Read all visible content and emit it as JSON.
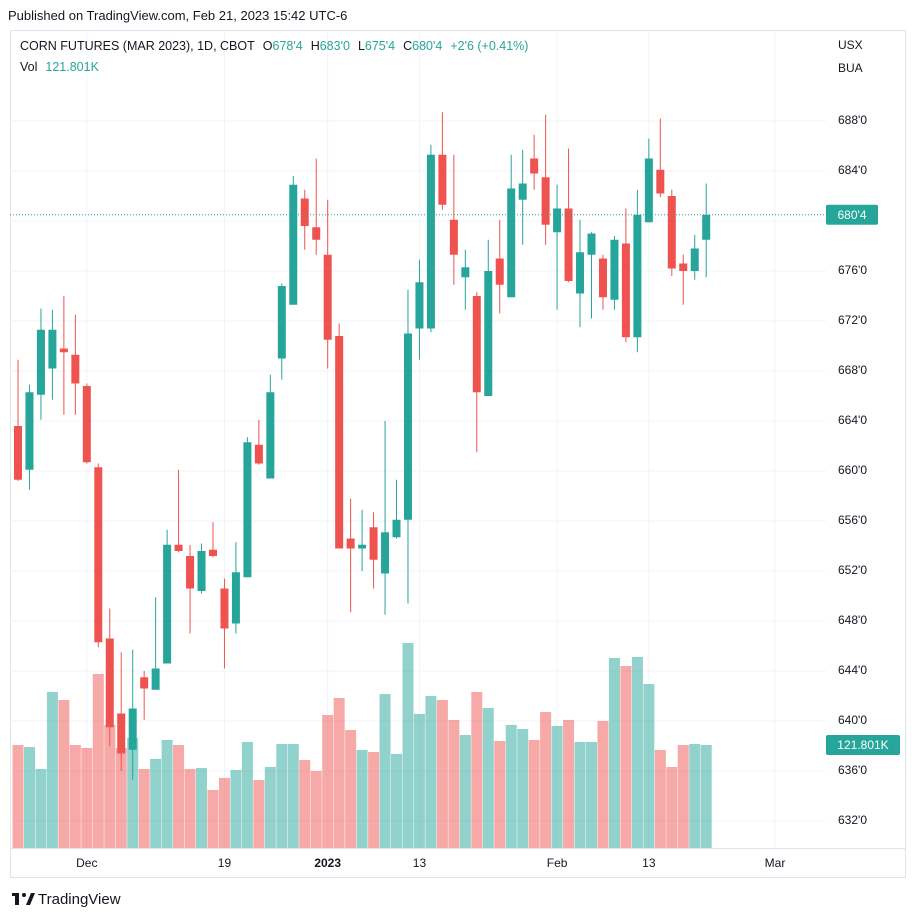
{
  "header": {
    "published": "Published on TradingView.com, Feb 21, 2023 15:42 UTC-6",
    "footer": "TradingView"
  },
  "chart_data": {
    "type": "candlestick",
    "title": "CORN FUTURES (MAR 2023), 1D, CBOT",
    "legend": [
      [
        "O",
        "678'4"
      ],
      [
        "H",
        "683'0"
      ],
      [
        "L",
        "675'4"
      ],
      [
        "C",
        "680'4"
      ]
    ],
    "change": "+2'6 (+0.41%)",
    "volume_title": "Vol",
    "volume_label": "121.801K",
    "currency": "USX",
    "unit": "BUA",
    "last_price_label": "680'4",
    "colors": {
      "up": "#26a69a",
      "down": "#ef5350"
    },
    "grid": true,
    "ylim": [
      629.84,
      695.28
    ],
    "yticks": [
      {
        "value": 632,
        "label": "632'0"
      },
      {
        "value": 636,
        "label": "636'0"
      },
      {
        "value": 640,
        "label": "640'0"
      },
      {
        "value": 644,
        "label": "644'0"
      },
      {
        "value": 648,
        "label": "648'0"
      },
      {
        "value": 652,
        "label": "652'0"
      },
      {
        "value": 656,
        "label": "656'0"
      },
      {
        "value": 660,
        "label": "660'0"
      },
      {
        "value": 664,
        "label": "664'0"
      },
      {
        "value": 668,
        "label": "668'0"
      },
      {
        "value": 672,
        "label": "672'0"
      },
      {
        "value": 676,
        "label": "676'0"
      },
      {
        "value": 680,
        "label": "680'0"
      },
      {
        "value": 684,
        "label": "684'0"
      },
      {
        "value": 688,
        "label": "688'0"
      }
    ],
    "categories": [
      null,
      null,
      null,
      null,
      null,
      null,
      "Dec",
      null,
      null,
      null,
      null,
      null,
      null,
      null,
      null,
      null,
      null,
      null,
      "19",
      null,
      null,
      null,
      null,
      null,
      null,
      null,
      null,
      "2023",
      null,
      null,
      null,
      null,
      null,
      null,
      null,
      "13",
      null,
      null,
      null,
      null,
      null,
      null,
      null,
      null,
      null,
      null,
      null,
      "Feb",
      null,
      null,
      null,
      null,
      null,
      null,
      null,
      "13",
      null,
      null,
      null,
      null,
      null,
      null,
      null,
      null,
      null,
      null,
      "Mar"
    ],
    "open": [
      663.6,
      660.1,
      666.1,
      668.2,
      669.8,
      669.3,
      666.8,
      660.3,
      646.6,
      640.6,
      637.7,
      643.5,
      642.5,
      644.6,
      654.1,
      653.2,
      650.4,
      653.7,
      650.6,
      647.8,
      651.5,
      662.1,
      659.4,
      669,
      673.3,
      681.8,
      679.5,
      677.3,
      670.8,
      654.6,
      653.8,
      655.5,
      651.8,
      654.7,
      656.1,
      671.4,
      671.4,
      685.3,
      680.1,
      675.5,
      674,
      666,
      677,
      673.9,
      681.7,
      685,
      683.5,
      679.1,
      681,
      674.2,
      677.3,
      677,
      673.7,
      678.2,
      670.7,
      679.9,
      684.1,
      682,
      676.6,
      676,
      678.5,
      null,
      null,
      null,
      null,
      null,
      null
    ],
    "high": [
      668.9,
      666.9,
      673,
      672.9,
      674,
      672.5,
      667,
      660.6,
      649,
      645.5,
      645.7,
      644,
      649.9,
      655.3,
      660.1,
      654.1,
      654.2,
      655.9,
      651.4,
      654.3,
      662.7,
      664.1,
      667.7,
      675,
      683.6,
      682.5,
      685,
      681.7,
      671.8,
      657.8,
      656.9,
      656.7,
      664,
      659.3,
      674.5,
      676.9,
      686.1,
      688.7,
      685.3,
      677.7,
      674.3,
      678.5,
      680.1,
      685.3,
      685.7,
      686.9,
      688.5,
      682.9,
      685.8,
      680.1,
      679.1,
      677.3,
      678.8,
      681,
      682.5,
      686.6,
      688.2,
      682.5,
      677.3,
      678.9,
      683,
      null,
      null,
      null,
      null,
      null,
      null
    ],
    "low": [
      659.2,
      658.5,
      664.1,
      665.7,
      664.5,
      664.5,
      660.6,
      645.9,
      638,
      636,
      635.3,
      640.1,
      642.5,
      644.6,
      653.5,
      647,
      650.2,
      653.1,
      644.2,
      647,
      651.5,
      660.5,
      659.4,
      667.3,
      673.3,
      677.7,
      677.3,
      668.2,
      653.8,
      648.7,
      652,
      650.6,
      648.5,
      654.6,
      649.4,
      668.9,
      671.1,
      680.9,
      674.9,
      672.9,
      661.5,
      666,
      672.6,
      673.9,
      678.1,
      682.5,
      678.1,
      672.9,
      675.1,
      671.5,
      672.2,
      672.9,
      672.9,
      670.3,
      669.5,
      679.9,
      681.9,
      675.6,
      673.3,
      675.3,
      675.5,
      null,
      null,
      null,
      null,
      null,
      null
    ],
    "close": [
      659.3,
      666.3,
      671.3,
      671.3,
      669.5,
      667,
      660.7,
      646.3,
      639.5,
      637.4,
      641,
      642.6,
      644.2,
      654.1,
      653.6,
      650.6,
      653.6,
      653.2,
      647.4,
      651.9,
      662.3,
      660.6,
      666.3,
      674.8,
      682.9,
      679.6,
      678.5,
      670.5,
      653.8,
      653.8,
      654.1,
      652.9,
      655.1,
      656.1,
      671,
      675.1,
      685.3,
      681.3,
      677.3,
      676.3,
      666.3,
      676,
      674.9,
      682.6,
      683,
      683.8,
      679.7,
      681,
      675.2,
      677.5,
      679,
      673.9,
      678.5,
      670.7,
      680.5,
      685,
      682.2,
      676.2,
      676,
      677.8,
      680.5,
      null,
      null,
      null,
      null,
      null,
      null
    ],
    "volume": [
      121.8,
      119.4,
      93.4,
      184.5,
      175,
      121.8,
      118.3,
      205.8,
      145.5,
      118.3,
      130.1,
      93.4,
      105.3,
      127.7,
      121.8,
      93.4,
      94.6,
      68.6,
      82.8,
      92.2,
      125.4,
      80.4,
      95.8,
      123,
      123,
      104.1,
      91.1,
      157.3,
      177.4,
      139.5,
      115.9,
      113.5,
      182.1,
      111.2,
      242.4,
      158.5,
      179.8,
      175,
      151.4,
      133.6,
      184.5,
      165.6,
      126.5,
      145.5,
      140.7,
      127.7,
      160.8,
      144.3,
      151.4,
      125.4,
      125.4,
      150.2,
      224.7,
      215.2,
      225.9,
      193.9,
      115.9,
      95.8,
      121.8,
      123,
      121.801,
      null,
      null,
      null,
      null,
      null,
      null
    ]
  }
}
